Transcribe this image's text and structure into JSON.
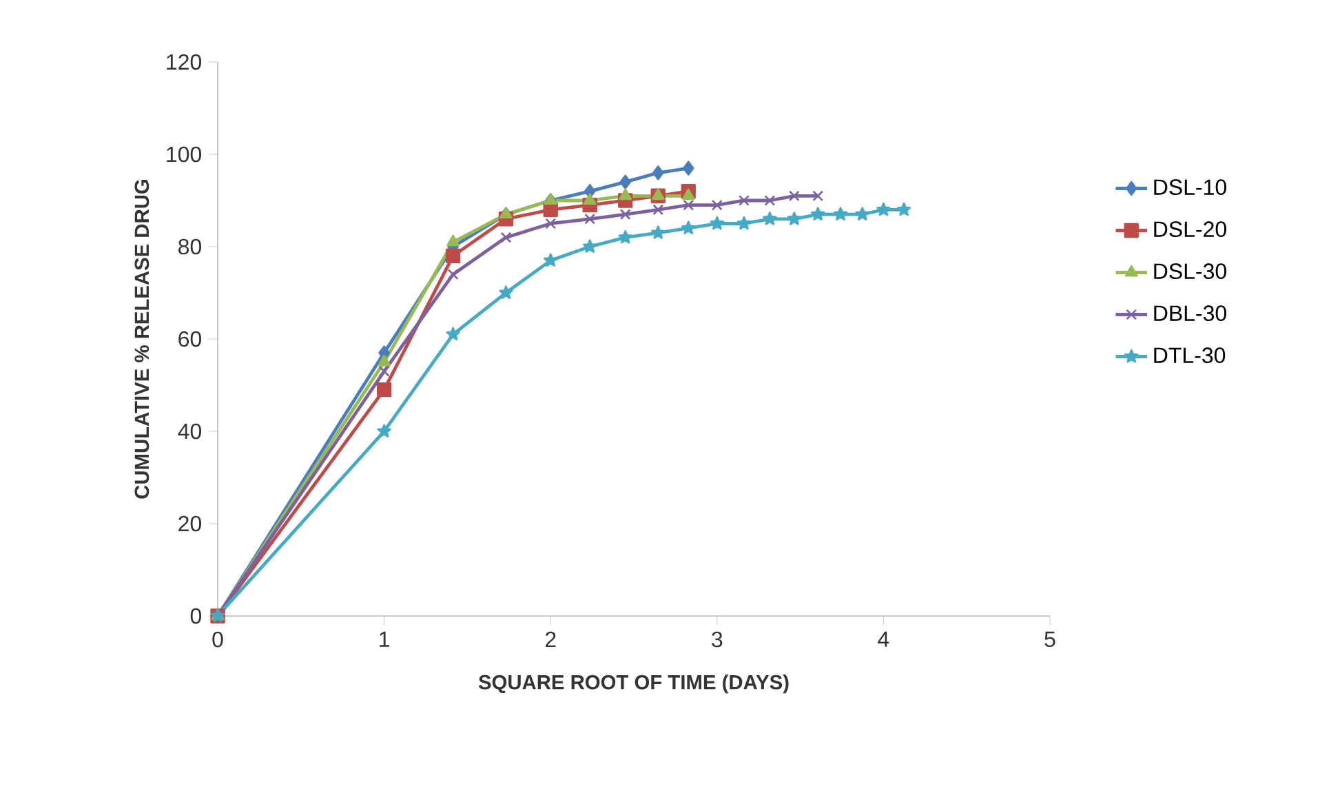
{
  "chart_data": {
    "type": "line",
    "xlabel": "SQUARE ROOT OF TIME (DAYS)",
    "ylabel": "CUMULATIVE % RELEASE DRUG",
    "xlim": [
      0,
      5
    ],
    "xticks": [
      0,
      1,
      2,
      3,
      4,
      5
    ],
    "ylim": [
      0,
      120
    ],
    "yticks": [
      0,
      20,
      40,
      60,
      80,
      100,
      120
    ],
    "legend": "right",
    "line_style": "solid",
    "series": [
      {
        "name": "DSL-10",
        "color": "#4a7ebb",
        "marker": "diamond",
        "x": [
          0,
          1,
          1.414,
          1.732,
          2,
          2.236,
          2.449,
          2.646,
          2.828
        ],
        "values": [
          0,
          57,
          80,
          87,
          90,
          92,
          94,
          96,
          97
        ]
      },
      {
        "name": "DSL-20",
        "color": "#be4b48",
        "marker": "square",
        "x": [
          0,
          1,
          1.414,
          1.732,
          2,
          2.236,
          2.449,
          2.646,
          2.828
        ],
        "values": [
          0,
          49,
          78,
          86,
          88,
          89,
          90,
          91,
          92
        ]
      },
      {
        "name": "DSL-30",
        "color": "#98b954",
        "marker": "triangle",
        "x": [
          0,
          1,
          1.414,
          1.732,
          2,
          2.236,
          2.449,
          2.646,
          2.828
        ],
        "values": [
          0,
          55,
          81,
          87,
          90,
          90,
          91,
          91,
          91
        ]
      },
      {
        "name": "DBL-30",
        "color": "#7d60a0",
        "marker": "cross",
        "x": [
          0,
          1,
          1.414,
          1.732,
          2,
          2.236,
          2.449,
          2.646,
          2.828,
          3,
          3.162,
          3.317,
          3.464,
          3.606
        ],
        "values": [
          0,
          53,
          74,
          82,
          85,
          86,
          87,
          88,
          89,
          89,
          90,
          90,
          91,
          91
        ]
      },
      {
        "name": "DTL-30",
        "color": "#46aac5",
        "marker": "star",
        "x": [
          0,
          1,
          1.414,
          1.732,
          2,
          2.236,
          2.449,
          2.646,
          2.828,
          3,
          3.162,
          3.317,
          3.464,
          3.606,
          3.742,
          3.873,
          4,
          4.123
        ],
        "values": [
          0,
          40,
          61,
          70,
          77,
          80,
          82,
          83,
          84,
          85,
          85,
          86,
          86,
          87,
          87,
          87,
          88,
          88
        ]
      }
    ]
  }
}
